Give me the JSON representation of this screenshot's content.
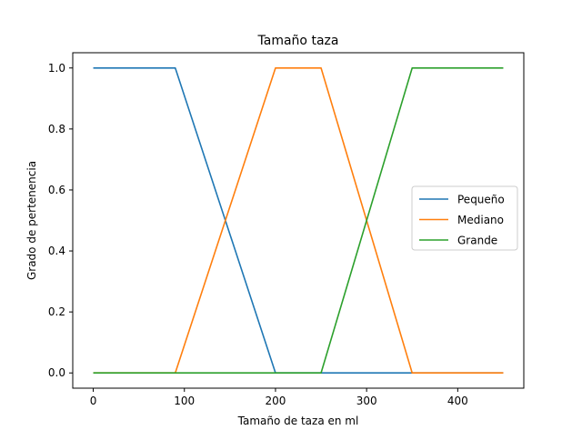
{
  "chart_data": {
    "type": "line",
    "title": "Tamaño taza",
    "xlabel": "Tamaño de taza en ml",
    "ylabel": "Grado de pertenencia",
    "xlim": [
      -22.5,
      472.5
    ],
    "ylim": [
      -0.05,
      1.05
    ],
    "x_ticks": [
      0,
      100,
      200,
      300,
      400
    ],
    "x_tick_labels": [
      "0",
      "100",
      "200",
      "300",
      "400"
    ],
    "y_ticks": [
      0.0,
      0.2,
      0.4,
      0.6,
      0.8,
      1.0
    ],
    "y_tick_labels": [
      "0.0",
      "0.2",
      "0.4",
      "0.6",
      "0.8",
      "1.0"
    ],
    "grid": false,
    "legend_position": "right",
    "series": [
      {
        "name": "Pequeño",
        "color": "#1f77b4",
        "points": [
          [
            0,
            1
          ],
          [
            90,
            1
          ],
          [
            200,
            0
          ],
          [
            450,
            0
          ]
        ]
      },
      {
        "name": "Mediano",
        "color": "#ff7f0e",
        "points": [
          [
            0,
            0
          ],
          [
            90,
            0
          ],
          [
            200,
            1
          ],
          [
            250,
            1
          ],
          [
            350,
            0
          ],
          [
            450,
            0
          ]
        ]
      },
      {
        "name": "Grande",
        "color": "#2ca02c",
        "points": [
          [
            0,
            0
          ],
          [
            250,
            0
          ],
          [
            350,
            1
          ],
          [
            450,
            1
          ]
        ]
      }
    ]
  }
}
